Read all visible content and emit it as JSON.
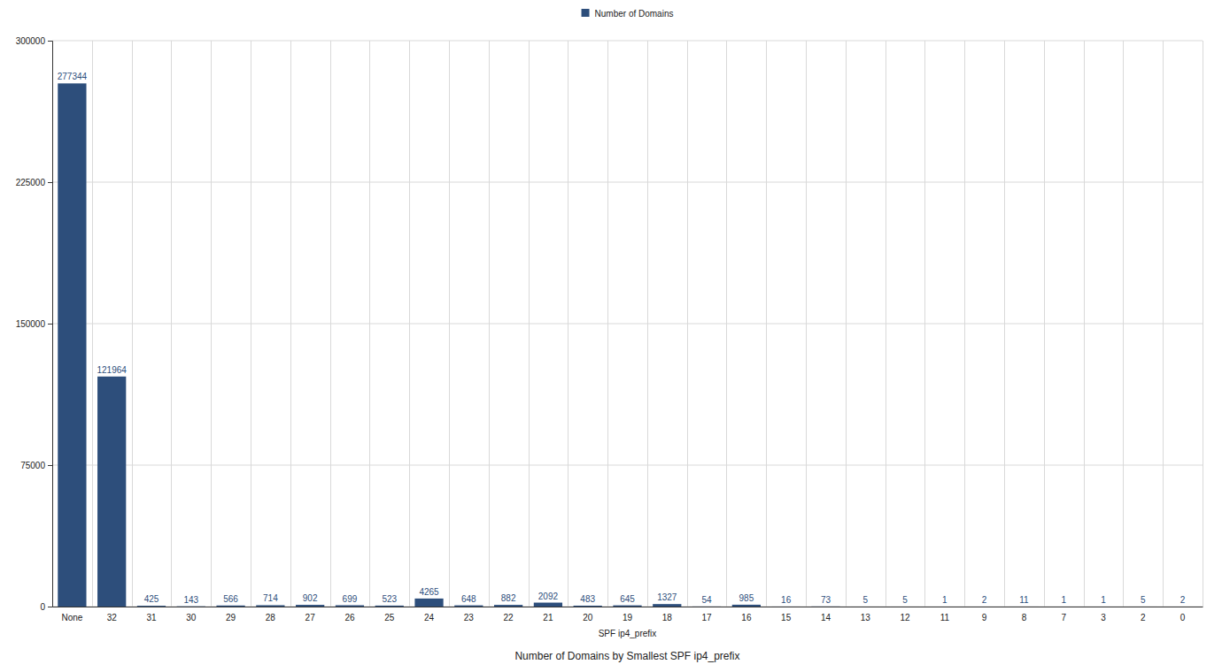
{
  "chart_data": {
    "type": "bar",
    "title": "Number of Domains by Smallest SPF ip4_prefix",
    "x_label": "SPF ip4_prefix",
    "categories": [
      "None",
      "32",
      "31",
      "30",
      "29",
      "28",
      "27",
      "26",
      "25",
      "24",
      "23",
      "22",
      "21",
      "20",
      "19",
      "18",
      "17",
      "16",
      "15",
      "14",
      "13",
      "12",
      "11",
      "9",
      "8",
      "7",
      "3",
      "2",
      "0"
    ],
    "series": [
      {
        "name": "Number of Domains",
        "color": "#2d4e7b",
        "values": [
          277344,
          121964,
          425,
          143,
          566,
          714,
          902,
          699,
          523,
          4265,
          648,
          882,
          2092,
          483,
          645,
          1327,
          54,
          985,
          16,
          73,
          5,
          5,
          1,
          2,
          11,
          1,
          1,
          5,
          2
        ]
      }
    ],
    "ylim": [
      0,
      300000
    ],
    "yticks": [
      0,
      75000,
      150000,
      225000,
      300000
    ],
    "grid": true,
    "legend": "top",
    "data_labels": true
  }
}
